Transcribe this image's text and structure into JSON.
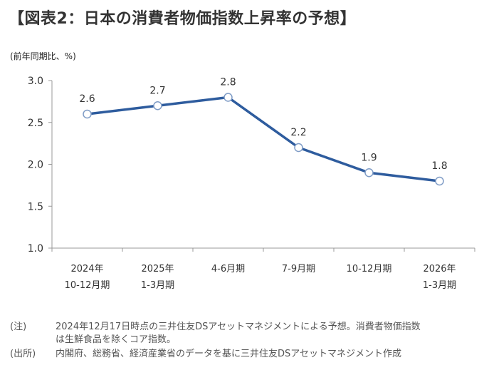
{
  "header": {
    "title": "【図表2：日本の消費者物価指数上昇率の予想】",
    "unit_label": "(前年同期比、%)"
  },
  "chart_data": {
    "type": "line",
    "categories": [
      [
        "2024年",
        "10-12月期"
      ],
      [
        "2025年",
        "1-3月期"
      ],
      [
        "4-6月期"
      ],
      [
        "7-9月期"
      ],
      [
        "10-12月期"
      ],
      [
        "2026年",
        "1-3月期"
      ]
    ],
    "series": [
      {
        "values": [
          2.6,
          2.7,
          2.8,
          2.2,
          1.9,
          1.8
        ]
      }
    ],
    "data_labels": [
      "2.6",
      "2.7",
      "2.8",
      "2.2",
      "1.9",
      "1.8"
    ],
    "y_ticks": [
      "1.0",
      "1.5",
      "2.0",
      "2.5",
      "3.0"
    ],
    "ylim": [
      1.0,
      3.0
    ],
    "grid": false,
    "line_color": "#2e5c9e",
    "marker_fill": "#ffffff"
  },
  "notes": [
    {
      "tag": "(注)",
      "lines": [
        "2024年12月17日時点の三井住友DSアセットマネジメントによる予想。消費者物価指数",
        "は生鮮食品を除くコア指数。"
      ]
    },
    {
      "tag": "(出所)",
      "lines": [
        "内閣府、総務省、経済産業省のデータを基に三井住友DSアセットマネジメント作成"
      ]
    }
  ]
}
